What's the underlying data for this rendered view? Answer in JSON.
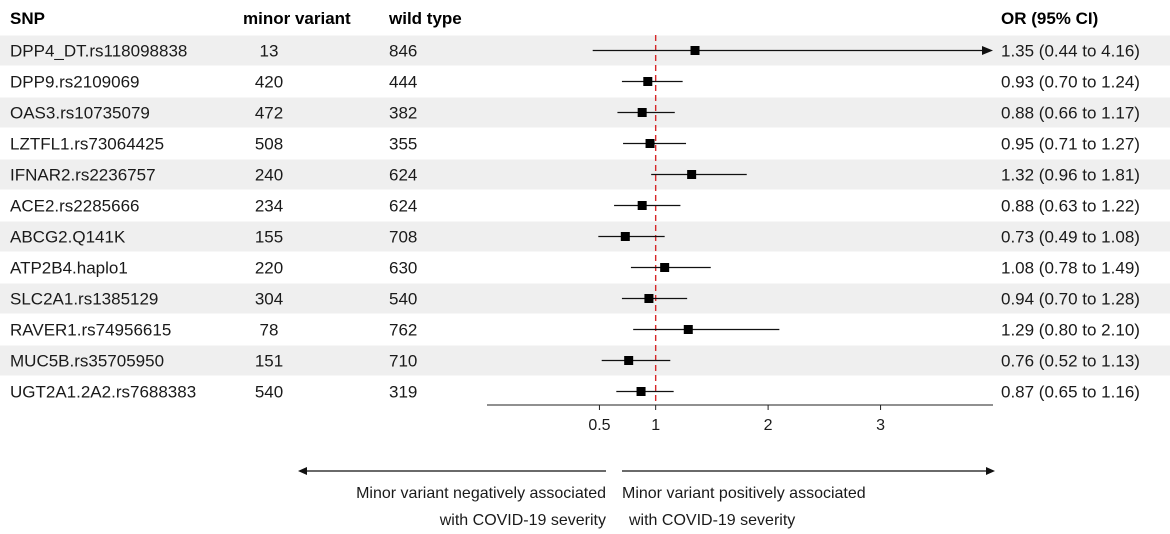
{
  "headers": {
    "snp": "SNP",
    "minor": "minor variant",
    "wild": "wild type",
    "or": "OR (95% CI)"
  },
  "rows": [
    {
      "snp": "DPP4_DT.rs118098838",
      "minor": "13",
      "wild": "846",
      "or_text": "1.35 (0.44 to 4.16)"
    },
    {
      "snp": "DPP9.rs2109069",
      "minor": "420",
      "wild": "444",
      "or_text": "0.93 (0.70 to 1.24)"
    },
    {
      "snp": "OAS3.rs10735079",
      "minor": "472",
      "wild": "382",
      "or_text": "0.88 (0.66 to 1.17)"
    },
    {
      "snp": "LZTFL1.rs73064425",
      "minor": "508",
      "wild": "355",
      "or_text": "0.95 (0.71 to 1.27)"
    },
    {
      "snp": "IFNAR2.rs2236757",
      "minor": "240",
      "wild": "624",
      "or_text": "1.32 (0.96 to 1.81)"
    },
    {
      "snp": "ACE2.rs2285666",
      "minor": "234",
      "wild": "624",
      "or_text": "0.88 (0.63 to 1.22)"
    },
    {
      "snp": "ABCG2.Q141K",
      "minor": "155",
      "wild": "708",
      "or_text": "0.73 (0.49 to 1.08)"
    },
    {
      "snp": "ATP2B4.haplo1",
      "minor": "220",
      "wild": "630",
      "or_text": "1.08 (0.78 to 1.49)"
    },
    {
      "snp": "SLC2A1.rs1385129",
      "minor": "304",
      "wild": "540",
      "or_text": "0.94 (0.70 to 1.28)"
    },
    {
      "snp": "RAVER1.rs74956615",
      "minor": "78",
      "wild": "762",
      "or_text": "1.29 (0.80 to 2.10)"
    },
    {
      "snp": "MUC5B.rs35705950",
      "minor": "151",
      "wild": "710",
      "or_text": "0.76 (0.52 to 1.13)"
    },
    {
      "snp": "UGT2A1.2A2.rs7688383",
      "minor": "540",
      "wild": "319",
      "or_text": "0.87 (0.65 to 1.16)"
    }
  ],
  "chart_data": {
    "type": "forest",
    "xlim": [
      -0.5,
      4.0
    ],
    "reference_line": 1,
    "x_ticks": [
      0.5,
      1,
      2,
      3
    ],
    "x_tick_labels": [
      "0.5",
      "1",
      "2",
      "3"
    ],
    "points": [
      {
        "label": "DPP4_DT.rs118098838",
        "or": 1.35,
        "lo": 0.44,
        "hi": 4.16
      },
      {
        "label": "DPP9.rs2109069",
        "or": 0.93,
        "lo": 0.7,
        "hi": 1.24
      },
      {
        "label": "OAS3.rs10735079",
        "or": 0.88,
        "lo": 0.66,
        "hi": 1.17
      },
      {
        "label": "LZTFL1.rs73064425",
        "or": 0.95,
        "lo": 0.71,
        "hi": 1.27
      },
      {
        "label": "IFNAR2.rs2236757",
        "or": 1.32,
        "lo": 0.96,
        "hi": 1.81
      },
      {
        "label": "ACE2.rs2285666",
        "or": 0.88,
        "lo": 0.63,
        "hi": 1.22
      },
      {
        "label": "ABCG2.Q141K",
        "or": 0.73,
        "lo": 0.49,
        "hi": 1.08
      },
      {
        "label": "ATP2B4.haplo1",
        "or": 1.08,
        "lo": 0.78,
        "hi": 1.49
      },
      {
        "label": "SLC2A1.rs1385129",
        "or": 0.94,
        "lo": 0.7,
        "hi": 1.28
      },
      {
        "label": "RAVER1.rs74956615",
        "or": 1.29,
        "lo": 0.8,
        "hi": 2.1
      },
      {
        "label": "MUC5B.rs35705950",
        "or": 0.76,
        "lo": 0.52,
        "hi": 1.13
      },
      {
        "label": "UGT2A1.2A2.rs7688383",
        "or": 0.87,
        "lo": 0.65,
        "hi": 1.16
      }
    ],
    "annotations": {
      "left_line1": "Minor variant negatively associated",
      "left_line2": "with COVID-19 severity",
      "right_line1": "Minor variant positively associated",
      "right_line2": "with COVID-19 severity"
    },
    "colors": {
      "stripe": "#efefef",
      "reference_line": "#d62728",
      "marker": "#000000"
    }
  }
}
